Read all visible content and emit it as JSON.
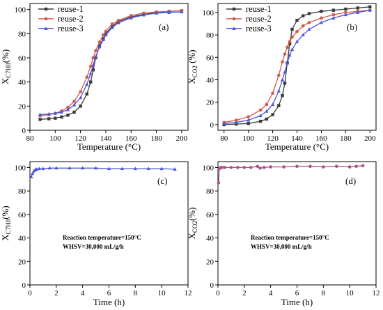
{
  "chart_data": [
    {
      "panel": "(a)",
      "type": "line",
      "xlabel": "Temperature (°C)",
      "ylabel": "X_C7H8(%)",
      "xlim": [
        80,
        205
      ],
      "ylim": [
        0,
        105
      ],
      "xticks": [
        80,
        100,
        120,
        140,
        160,
        180,
        200
      ],
      "yticks": [
        0,
        20,
        40,
        60,
        80,
        100
      ],
      "legend": "top-left",
      "series": [
        {
          "name": "reuse-1",
          "color": "#3a3a3a",
          "marker": "square",
          "x": [
            88,
            95,
            100,
            105,
            110,
            115,
            120,
            125,
            128,
            130,
            132,
            135,
            138,
            140,
            145,
            150,
            160,
            170,
            180,
            190,
            200
          ],
          "y": [
            9,
            9.5,
            10,
            11,
            12.5,
            15,
            20,
            30,
            40,
            50,
            60,
            70,
            76,
            80,
            86,
            90,
            94,
            96,
            97.5,
            98.5,
            99
          ]
        },
        {
          "name": "reuse-2",
          "color": "#d4574a",
          "marker": "circle",
          "x": [
            88,
            95,
            100,
            105,
            110,
            115,
            120,
            125,
            128,
            130,
            132,
            135,
            138,
            140,
            145,
            150,
            160,
            170,
            180,
            190,
            200
          ],
          "y": [
            12,
            13,
            14,
            16,
            19,
            24,
            32,
            44,
            53,
            60,
            66,
            73,
            79,
            82,
            88,
            91,
            95,
            97,
            98,
            98.5,
            99
          ]
        },
        {
          "name": "reuse-3",
          "color": "#4a56d8",
          "marker": "triangle",
          "x": [
            88,
            95,
            100,
            105,
            110,
            115,
            120,
            125,
            128,
            130,
            132,
            135,
            138,
            140,
            145,
            150,
            160,
            170,
            180,
            190,
            200
          ],
          "y": [
            13,
            13.5,
            14,
            15,
            17,
            21,
            27,
            38,
            47,
            54,
            61,
            69,
            75,
            79,
            85,
            89,
            93,
            95.5,
            97,
            97.5,
            98
          ]
        }
      ]
    },
    {
      "panel": "(b)",
      "type": "line",
      "xlabel": "Temperature (°C)",
      "ylabel": "X_CO2 (%)",
      "xlim": [
        75,
        205
      ],
      "ylim": [
        -5,
        108
      ],
      "xticks": [
        80,
        100,
        120,
        140,
        160,
        180,
        200
      ],
      "yticks": [
        0,
        20,
        40,
        60,
        80,
        100
      ],
      "legend": "top-left",
      "series": [
        {
          "name": "reuse-1",
          "color": "#3a3a3a",
          "marker": "square",
          "x": [
            80,
            90,
            100,
            110,
            115,
            120,
            125,
            128,
            130,
            132,
            134,
            136,
            140,
            145,
            150,
            160,
            170,
            180,
            190,
            200
          ],
          "y": [
            0,
            0.5,
            1,
            3,
            5,
            9,
            17,
            26,
            37,
            55,
            72,
            85,
            93,
            97,
            99,
            101,
            102,
            103,
            104,
            105
          ]
        },
        {
          "name": "reuse-2",
          "color": "#d4574a",
          "marker": "circle",
          "x": [
            80,
            90,
            100,
            110,
            115,
            120,
            125,
            128,
            130,
            132,
            134,
            136,
            140,
            145,
            150,
            160,
            170,
            180,
            190,
            200
          ],
          "y": [
            2,
            4,
            7,
            13,
            18,
            28,
            44,
            56,
            63,
            69,
            74,
            78,
            83,
            88,
            91,
            95,
            98,
            100,
            101,
            102
          ]
        },
        {
          "name": "reuse-3",
          "color": "#4a56d8",
          "marker": "triangle",
          "x": [
            80,
            90,
            100,
            110,
            115,
            120,
            125,
            128,
            130,
            132,
            134,
            136,
            140,
            145,
            150,
            160,
            170,
            180,
            190,
            200
          ],
          "y": [
            1,
            2,
            4,
            8,
            12,
            18,
            30,
            40,
            47,
            55,
            62,
            67,
            74,
            80,
            85,
            91,
            95,
            98,
            100,
            102
          ]
        }
      ]
    },
    {
      "panel": "(c)",
      "type": "line",
      "xlabel": "Time (h)",
      "ylabel": "X_C7H8(%)",
      "xlim": [
        0,
        12
      ],
      "ylim": [
        0,
        105
      ],
      "xticks": [
        0,
        2,
        4,
        6,
        8,
        10,
        12
      ],
      "yticks": [
        0,
        20,
        40,
        60,
        80,
        100
      ],
      "annotation": [
        "Reaction temperature=150°C",
        "WHSV=30,000 mL/g/h"
      ],
      "series": [
        {
          "color": "#4a56d8",
          "marker": "triangle",
          "x": [
            0.1,
            0.2,
            0.3,
            0.4,
            0.5,
            0.7,
            1,
            1.5,
            2,
            3,
            4,
            5,
            6,
            7,
            8,
            9,
            10,
            11
          ],
          "y": [
            92,
            95,
            97,
            98,
            98.5,
            99,
            99,
            99.5,
            99.5,
            99.5,
            99.5,
            99.5,
            99,
            99,
            99,
            99,
            99,
            98.5
          ]
        }
      ]
    },
    {
      "panel": "(d)",
      "type": "line",
      "xlabel": "Time (h)",
      "ylabel": "X_CO2(%)",
      "xlim": [
        0,
        12
      ],
      "ylim": [
        0,
        105
      ],
      "xticks": [
        0,
        2,
        4,
        6,
        8,
        10,
        12
      ],
      "yticks": [
        0,
        20,
        40,
        60,
        80,
        100
      ],
      "annotation": [
        "Reaction temperature=150°C",
        "WHSV=30,000 mL/g/h"
      ],
      "series": [
        {
          "color": "#b0508a",
          "marker": "circle",
          "x": [
            0.05,
            0.1,
            0.2,
            0.3,
            0.5,
            1,
            1.5,
            2,
            2.5,
            3,
            3.2,
            3.5,
            4,
            5,
            6,
            7,
            8,
            9,
            10,
            10.5,
            11
          ],
          "y": [
            87,
            99,
            100,
            100,
            100,
            100,
            100,
            100,
            100,
            101,
            99.5,
            100,
            100.5,
            100.5,
            101,
            101,
            100.5,
            101,
            100.5,
            101,
            101.5
          ]
        }
      ]
    }
  ]
}
